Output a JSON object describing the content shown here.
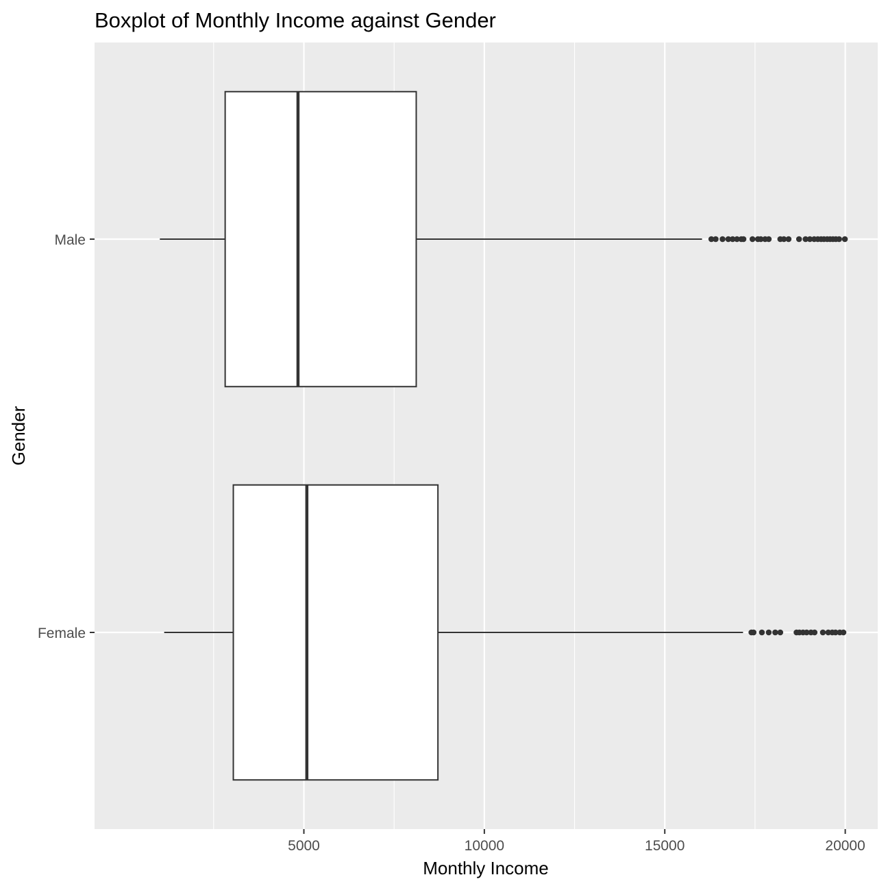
{
  "chart_data": {
    "type": "boxplot",
    "orientation": "horizontal",
    "title": "Boxplot of Monthly Income against Gender",
    "xlabel": "Monthly Income",
    "ylabel": "Gender",
    "xlim": [
      -800,
      20900
    ],
    "x_ticks": [
      5000,
      10000,
      15000,
      20000
    ],
    "x_tick_labels": [
      "5000",
      "10000",
      "15000",
      "20000"
    ],
    "x_minor_ticks": [
      2500,
      7500,
      12500,
      17500
    ],
    "grid": true,
    "categories": [
      "Male",
      "Female"
    ],
    "series": [
      {
        "category": "Male",
        "whisker_low": 1009,
        "q1": 2819,
        "median": 4837,
        "q3": 8113,
        "whisker_high": 16032,
        "outliers": [
          16290,
          16410,
          16600,
          16760,
          16880,
          17000,
          17120,
          17180,
          17430,
          17580,
          17660,
          17780,
          17880,
          18200,
          18300,
          18430,
          18720,
          18900,
          19020,
          19140,
          19240,
          19330,
          19410,
          19500,
          19580,
          19660,
          19740,
          19830,
          19990
        ]
      },
      {
        "category": "Female",
        "whisker_low": 1129,
        "q1": 3045,
        "median": 5082,
        "q3": 8714,
        "whisker_high": 17169,
        "outliers": [
          17400,
          17460,
          17690,
          17880,
          18060,
          18200,
          18650,
          18730,
          18830,
          18930,
          19050,
          19150,
          19380,
          19530,
          19640,
          19730,
          19850,
          19950
        ]
      }
    ]
  },
  "style": {
    "panel_bg": "#ebebeb",
    "grid_major": "#ffffff",
    "box_stroke": "#333333",
    "box_fill": "#ffffff"
  }
}
